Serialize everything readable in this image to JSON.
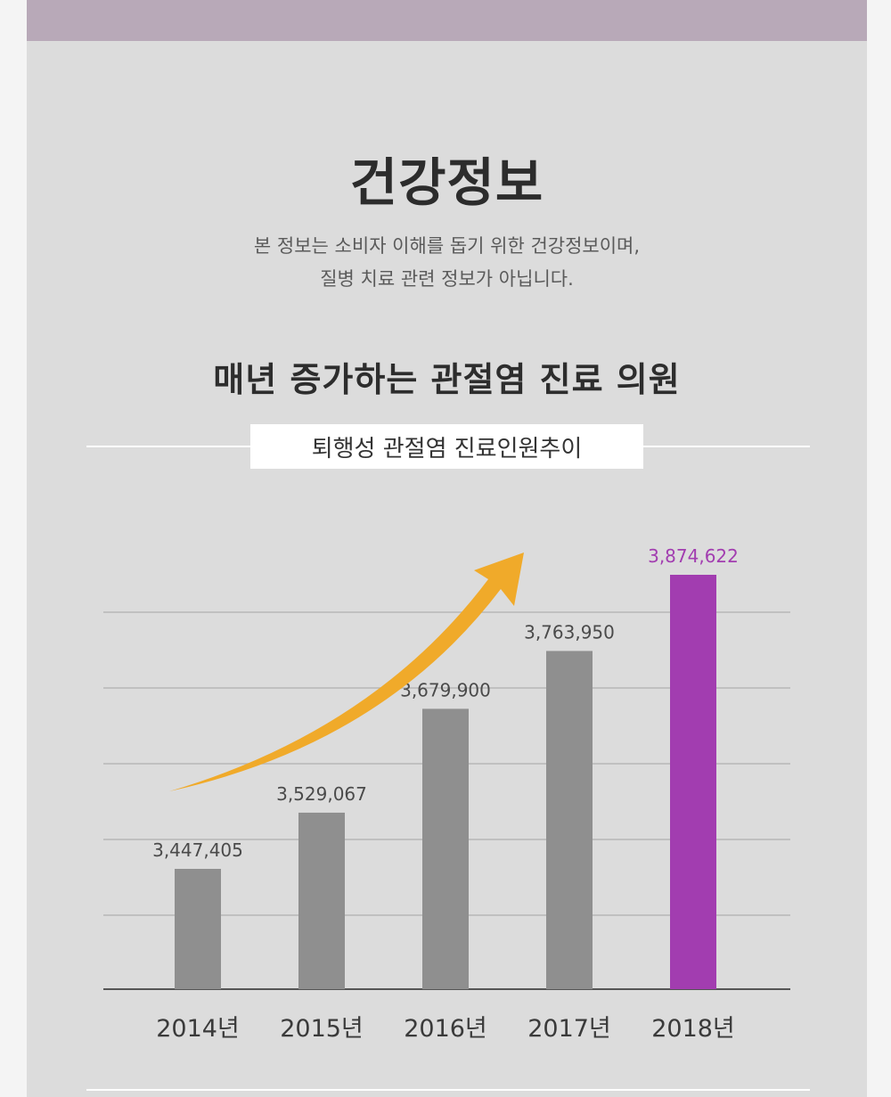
{
  "header": {
    "title": "건강정보",
    "subtitle_line1": "본 정보는 소비자 이해를 돕기 위한 건강정보이며,",
    "subtitle_line2": "질병 치료 관련 정보가 아닙니다."
  },
  "section": {
    "heading": "매년 증가하는 관절염 진료 의원"
  },
  "colors": {
    "bar_default": "#8f8f8f",
    "bar_highlight": "#a23db0",
    "arrow": "#f0aa2a",
    "label_default": "#4a4a4a",
    "label_highlight": "#a23db0"
  },
  "chart_data": {
    "type": "bar",
    "title": "퇴행성 관절염 진료인원추이",
    "categories": [
      "2014년",
      "2015년",
      "2016년",
      "2017년",
      "2018년"
    ],
    "values": [
      3447405,
      3529067,
      3679900,
      3763950,
      3874622
    ],
    "value_labels": [
      "3,447,405",
      "3,529,067",
      "3,679,900",
      "3,763,950",
      "3,874,622"
    ],
    "highlight_index": 4,
    "grid": true,
    "trend_arrow": true
  }
}
